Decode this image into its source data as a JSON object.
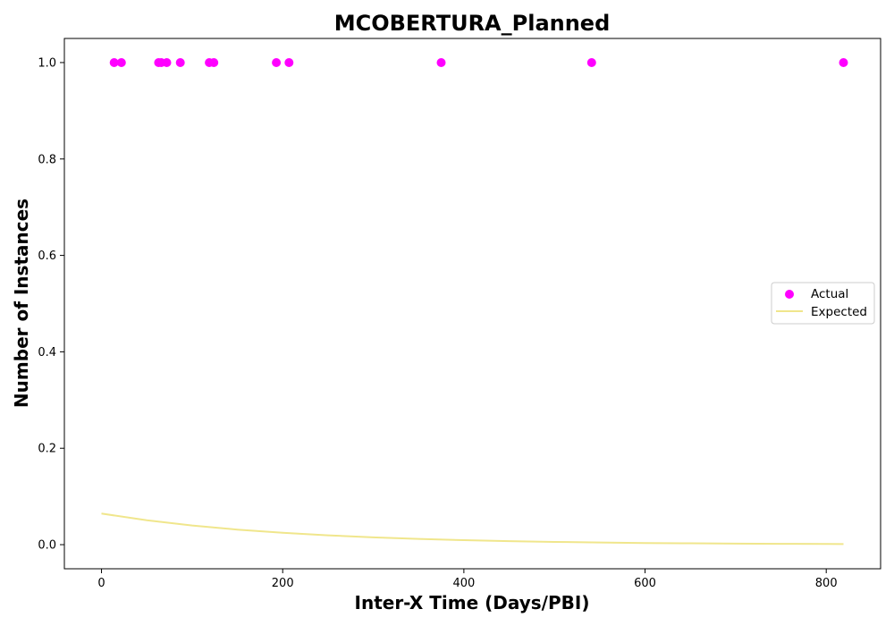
{
  "chart_data": {
    "type": "scatter",
    "title": "MCOBERTURA_Planned",
    "xlabel": "Inter-X Time (Days/PBI)",
    "ylabel": "Number of Instances",
    "xlim": [
      -41,
      860
    ],
    "ylim": [
      -0.05,
      1.05
    ],
    "xticks": [
      0,
      200,
      400,
      600,
      800
    ],
    "yticks": [
      0.0,
      0.2,
      0.4,
      0.6,
      0.8,
      1.0
    ],
    "xtick_labels": [
      "0",
      "200",
      "400",
      "600",
      "800"
    ],
    "ytick_labels": [
      "0.0",
      "0.2",
      "0.4",
      "0.6",
      "0.8",
      "1.0"
    ],
    "grid": false,
    "legend": {
      "position": "center-right",
      "entries": [
        "Actual",
        "Expected"
      ]
    },
    "series": [
      {
        "name": "Actual",
        "kind": "scatter",
        "color": "#ff00ff",
        "x": [
          14,
          22,
          63,
          66,
          72,
          87,
          119,
          124,
          193,
          207,
          375,
          541,
          819
        ],
        "y": [
          1,
          1,
          1,
          1,
          1,
          1,
          1,
          1,
          1,
          1,
          1,
          1,
          1
        ]
      },
      {
        "name": "Expected",
        "kind": "line",
        "color": "#f0e68c",
        "x": [
          0,
          50,
          100,
          150,
          200,
          250,
          300,
          350,
          400,
          450,
          500,
          550,
          600,
          650,
          700,
          750,
          800,
          819
        ],
        "y": [
          0.0645,
          0.0506,
          0.0398,
          0.0313,
          0.0245,
          0.0193,
          0.0151,
          0.0119,
          0.0093,
          0.0073,
          0.0057,
          0.0045,
          0.0035,
          0.0028,
          0.0022,
          0.0017,
          0.0013,
          0.0012
        ]
      }
    ]
  }
}
